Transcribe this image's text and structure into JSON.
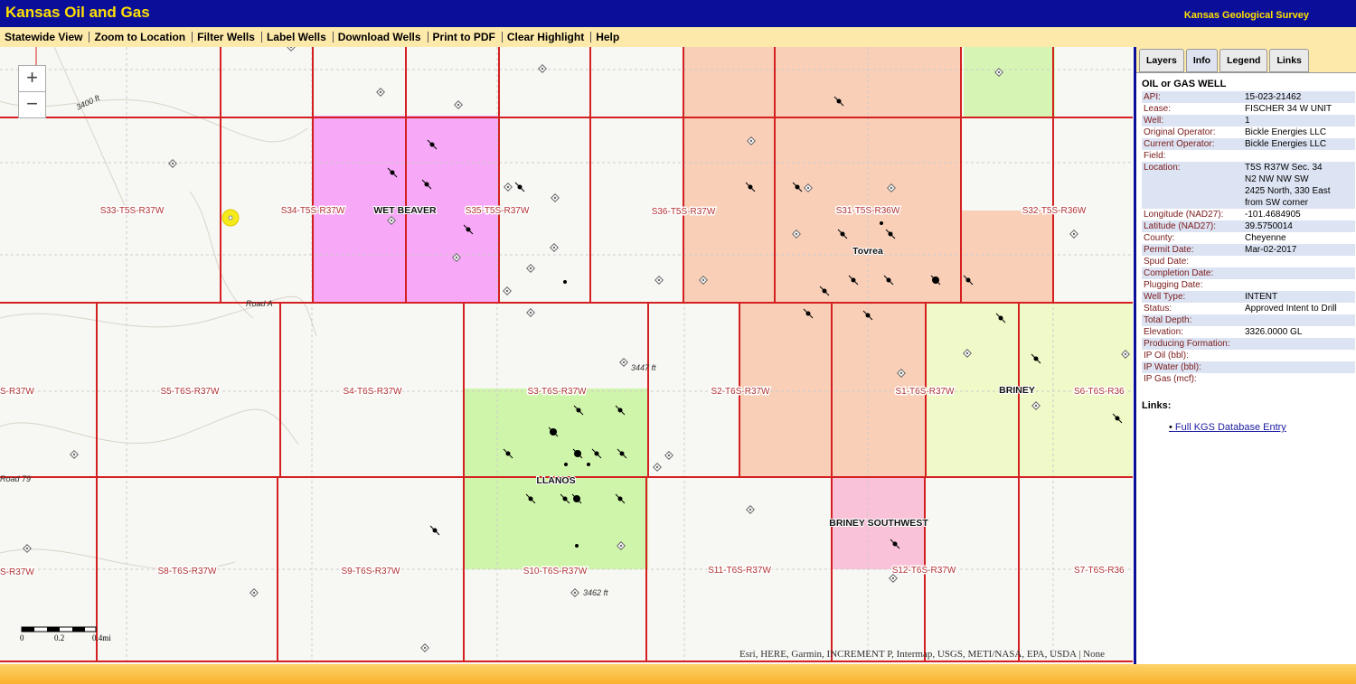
{
  "header": {
    "title": "Kansas Oil and Gas",
    "org": "Kansas Geological Survey"
  },
  "toolbar": [
    "Statewide View",
    "Zoom to Location",
    "Filter Wells",
    "Label Wells",
    "Download Wells",
    "Print to PDF",
    "Clear Highlight",
    "Help"
  ],
  "map": {
    "zoom": [
      "+",
      "−"
    ],
    "section_labels": [
      "S33-T5S-R37W",
      "S34-T5S-R37W",
      "S35-T5S-R37W",
      "S36-T5S-R37W",
      "S31-T5S-R36W",
      "S32-T5S-R36W",
      "S-R37W",
      "S5-T6S-R37W",
      "S4-T6S-R37W",
      "S3-T6S-R37W",
      "S2-T6S-R37W",
      "S1-T6S-R37W",
      "S6-T6S-R36",
      "S-R37W",
      "S8-T6S-R37W",
      "S9-T6S-R37W",
      "S10-T6S-R37W",
      "S11-T6S-R37W",
      "S12-T6S-R37W",
      "S7-T6S-R36"
    ],
    "field_labels": [
      "WET BEAVER",
      "Tovrea",
      "BRINEY",
      "LLANOS",
      "BRINEY SOUTHWEST"
    ],
    "elevation_labels": [
      "3447 ft",
      "3462 ft",
      "3400 ft"
    ],
    "road_labels": [
      "Road A",
      "Road 79"
    ],
    "scale": [
      "0",
      "0.2",
      "0.4mi"
    ],
    "attribution": "Esri, HERE, Garmin, INCREMENT P, Intermap, USGS, METI/NASA, EPA, USDA | None"
  },
  "panel": {
    "tabs": [
      "Layers",
      "Info",
      "Legend",
      "Links"
    ],
    "heading": "OIL or GAS WELL",
    "rows": [
      {
        "label": "API:",
        "value": "15-023-21462"
      },
      {
        "label": "Lease:",
        "value": "FISCHER 34 W UNIT"
      },
      {
        "label": "Well:",
        "value": "1"
      },
      {
        "label": "Original Operator:",
        "value": "Bickle Energies LLC"
      },
      {
        "label": "Current Operator:",
        "value": "Bickle Energies LLC"
      },
      {
        "label": "Field:"
      },
      {
        "label": "Location:",
        "value": [
          "T5S R37W Sec. 34",
          "N2 NW NW SW",
          "2425 North, 330 East",
          "from SW corner"
        ]
      },
      {
        "label": "Longitude (NAD27):",
        "value": "-101.4684905"
      },
      {
        "label": "Latitude (NAD27):",
        "value": "39.5750014"
      },
      {
        "label": "County:",
        "value": "Cheyenne"
      },
      {
        "label": "Permit Date:",
        "value": "Mar-02-2017"
      },
      {
        "label": "Spud Date:"
      },
      {
        "label": "Completion Date:"
      },
      {
        "label": "Plugging Date:"
      },
      {
        "label": "Well Type:",
        "value": "INTENT"
      },
      {
        "label": "Status:",
        "value": "Approved Intent to Drill"
      },
      {
        "label": "Total Depth:"
      },
      {
        "label": "Elevation:",
        "value": "3326.0000 GL"
      },
      {
        "label": "Producing Formation:"
      },
      {
        "label": "IP Oil (bbl):"
      },
      {
        "label": "IP Water (bbl):"
      },
      {
        "label": "IP Gas (mcf):"
      }
    ],
    "links_heading": "Links:",
    "link": "Full KGS Database Entry"
  }
}
